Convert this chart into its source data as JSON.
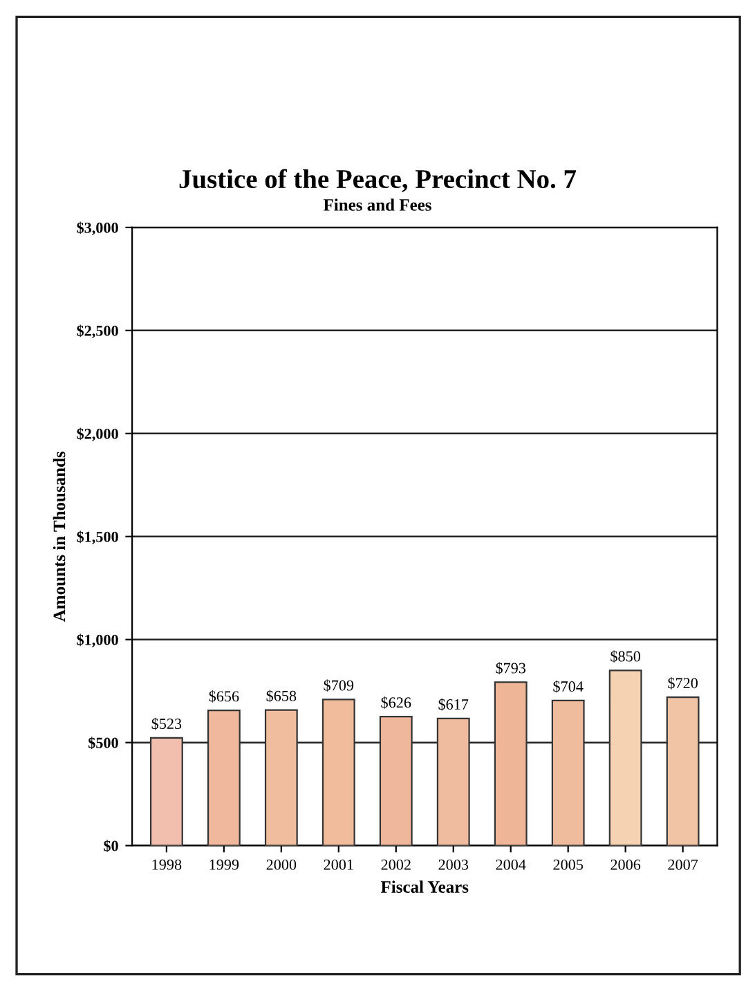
{
  "chart_data": {
    "type": "bar",
    "title": "Justice of the Peace, Precinct No. 7",
    "subtitle": "Fines and Fees",
    "xlabel": "Fiscal Years",
    "ylabel": "Amounts in Thousands",
    "categories": [
      "1998",
      "1999",
      "2000",
      "2001",
      "2002",
      "2003",
      "2004",
      "2005",
      "2006",
      "2007"
    ],
    "values": [
      523,
      656,
      658,
      709,
      626,
      617,
      793,
      704,
      850,
      720
    ],
    "value_labels": [
      "$523",
      "$656",
      "$658",
      "$709",
      "$626",
      "$617",
      "$793",
      "$704",
      "$850",
      "$720"
    ],
    "colors": [
      "#f2bfae",
      "#f0b89c",
      "#f0bd9e",
      "#f0bc9c",
      "#efb89c",
      "#f0bca0",
      "#eeb696",
      "#f0bc9e",
      "#f5d2b2",
      "#f2c4a6"
    ],
    "ylim": [
      0,
      3000
    ],
    "yticks": [
      {
        "value": 0,
        "label": "$0"
      },
      {
        "value": 500,
        "label": "$500"
      },
      {
        "value": 1000,
        "label": "$1,000"
      },
      {
        "value": 1500,
        "label": "$1,500"
      },
      {
        "value": 2000,
        "label": "$2,000"
      },
      {
        "value": 2500,
        "label": "$2,500"
      },
      {
        "value": 3000,
        "label": "$3,000"
      }
    ],
    "grid": "y"
  }
}
